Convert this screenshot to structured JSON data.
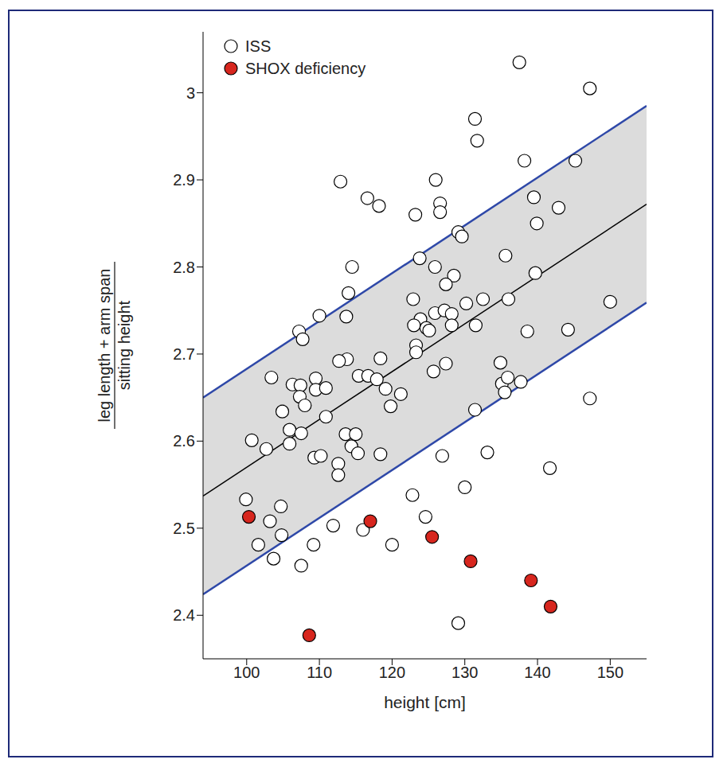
{
  "chart_data": {
    "type": "scatter",
    "x_label": "height [cm]",
    "y_label": {
      "numerator": "leg length + arm span",
      "denominator": "sitting height"
    },
    "xlim": [
      94,
      155
    ],
    "ylim": [
      2.35,
      3.07
    ],
    "xticks": [
      100,
      110,
      120,
      130,
      140,
      150
    ],
    "yticks": [
      2.4,
      2.5,
      2.6,
      2.7,
      2.8,
      2.9,
      3
    ],
    "legend": "upper left",
    "series": [
      {
        "name": "ISS",
        "color": "#ffffff",
        "marker": "circle",
        "x": [
          137.5,
          147.2,
          131.4,
          131.7,
          112.9,
          126.0,
          145.2,
          138.2,
          116.6,
          118.2,
          123.2,
          126.6,
          126.6,
          142.9,
          139.5,
          139.9,
          129.1,
          129.6,
          114.5,
          123.8,
          135.6,
          139.7,
          125.9,
          128.5,
          114.0,
          127.4,
          132.5,
          122.9,
          136.0,
          150.0,
          130.2,
          125.9,
          127.2,
          110.0,
          113.7,
          107.2,
          107.7,
          123.9,
          124.7,
          125.1,
          123.0,
          128.2,
          128.2,
          131.5,
          138.6,
          144.2,
          123.3,
          123.3,
          125.7,
          127.4,
          137.7,
          113.8,
          112.7,
          118.4,
          103.4,
          106.3,
          107.4,
          109.5,
          109.5,
          110.9,
          115.4,
          116.7,
          117.9,
          119.1,
          121.2,
          119.8,
          107.3,
          108.0,
          104.9,
          135.1,
          135.5,
          135.9,
          134.9,
          131.4,
          105.9,
          107.5,
          105.9,
          110.9,
          113.6,
          115.0,
          114.4,
          115.3,
          118.4,
          109.3,
          110.2,
          112.6,
          112.6,
          102.7,
          100.7,
          126.9,
          133.1,
          130.0,
          141.7,
          147.2,
          122.8,
          124.6,
          99.9,
          104.7,
          103.2,
          104.8,
          101.6,
          109.2,
          111.9,
          116.0,
          120.0,
          103.7,
          107.5,
          129.1
        ],
        "values": [
          3.035,
          3.005,
          2.97,
          2.945,
          2.898,
          2.9,
          2.922,
          2.922,
          2.879,
          2.87,
          2.86,
          2.873,
          2.863,
          2.868,
          2.88,
          2.85,
          2.84,
          2.835,
          2.8,
          2.81,
          2.813,
          2.793,
          2.8,
          2.79,
          2.77,
          2.78,
          2.763,
          2.763,
          2.763,
          2.76,
          2.758,
          2.747,
          2.75,
          2.744,
          2.743,
          2.726,
          2.717,
          2.74,
          2.73,
          2.727,
          2.733,
          2.746,
          2.733,
          2.733,
          2.726,
          2.728,
          2.71,
          2.702,
          2.68,
          2.689,
          2.668,
          2.694,
          2.692,
          2.695,
          2.673,
          2.665,
          2.664,
          2.672,
          2.659,
          2.661,
          2.675,
          2.675,
          2.671,
          2.66,
          2.654,
          2.64,
          2.651,
          2.641,
          2.634,
          2.666,
          2.656,
          2.673,
          2.69,
          2.636,
          2.613,
          2.609,
          2.597,
          2.628,
          2.608,
          2.608,
          2.594,
          2.586,
          2.585,
          2.581,
          2.583,
          2.574,
          2.561,
          2.591,
          2.601,
          2.583,
          2.587,
          2.547,
          2.569,
          2.649,
          2.538,
          2.513,
          2.533,
          2.525,
          2.508,
          2.492,
          2.481,
          2.481,
          2.503,
          2.498,
          2.481,
          2.465,
          2.457,
          2.391
        ]
      },
      {
        "name": "SHOX deficiency",
        "color": "#d7261e",
        "marker": "circle",
        "x": [
          100.3,
          108.6,
          117.0,
          125.5,
          130.8,
          139.1,
          141.8
        ],
        "values": [
          2.513,
          2.377,
          2.508,
          2.49,
          2.462,
          2.44,
          2.41
        ]
      }
    ],
    "fit_line": {
      "type": "line",
      "color": "#000000",
      "x": [
        94,
        155
      ],
      "values": [
        2.537,
        2.872
      ]
    },
    "band": {
      "color": "#dcdcdc",
      "edge": {
        "color": "#2e48a8"
      },
      "x": [
        94,
        155
      ],
      "lower": [
        2.424,
        2.759
      ],
      "upper": [
        2.65,
        2.985
      ]
    }
  }
}
